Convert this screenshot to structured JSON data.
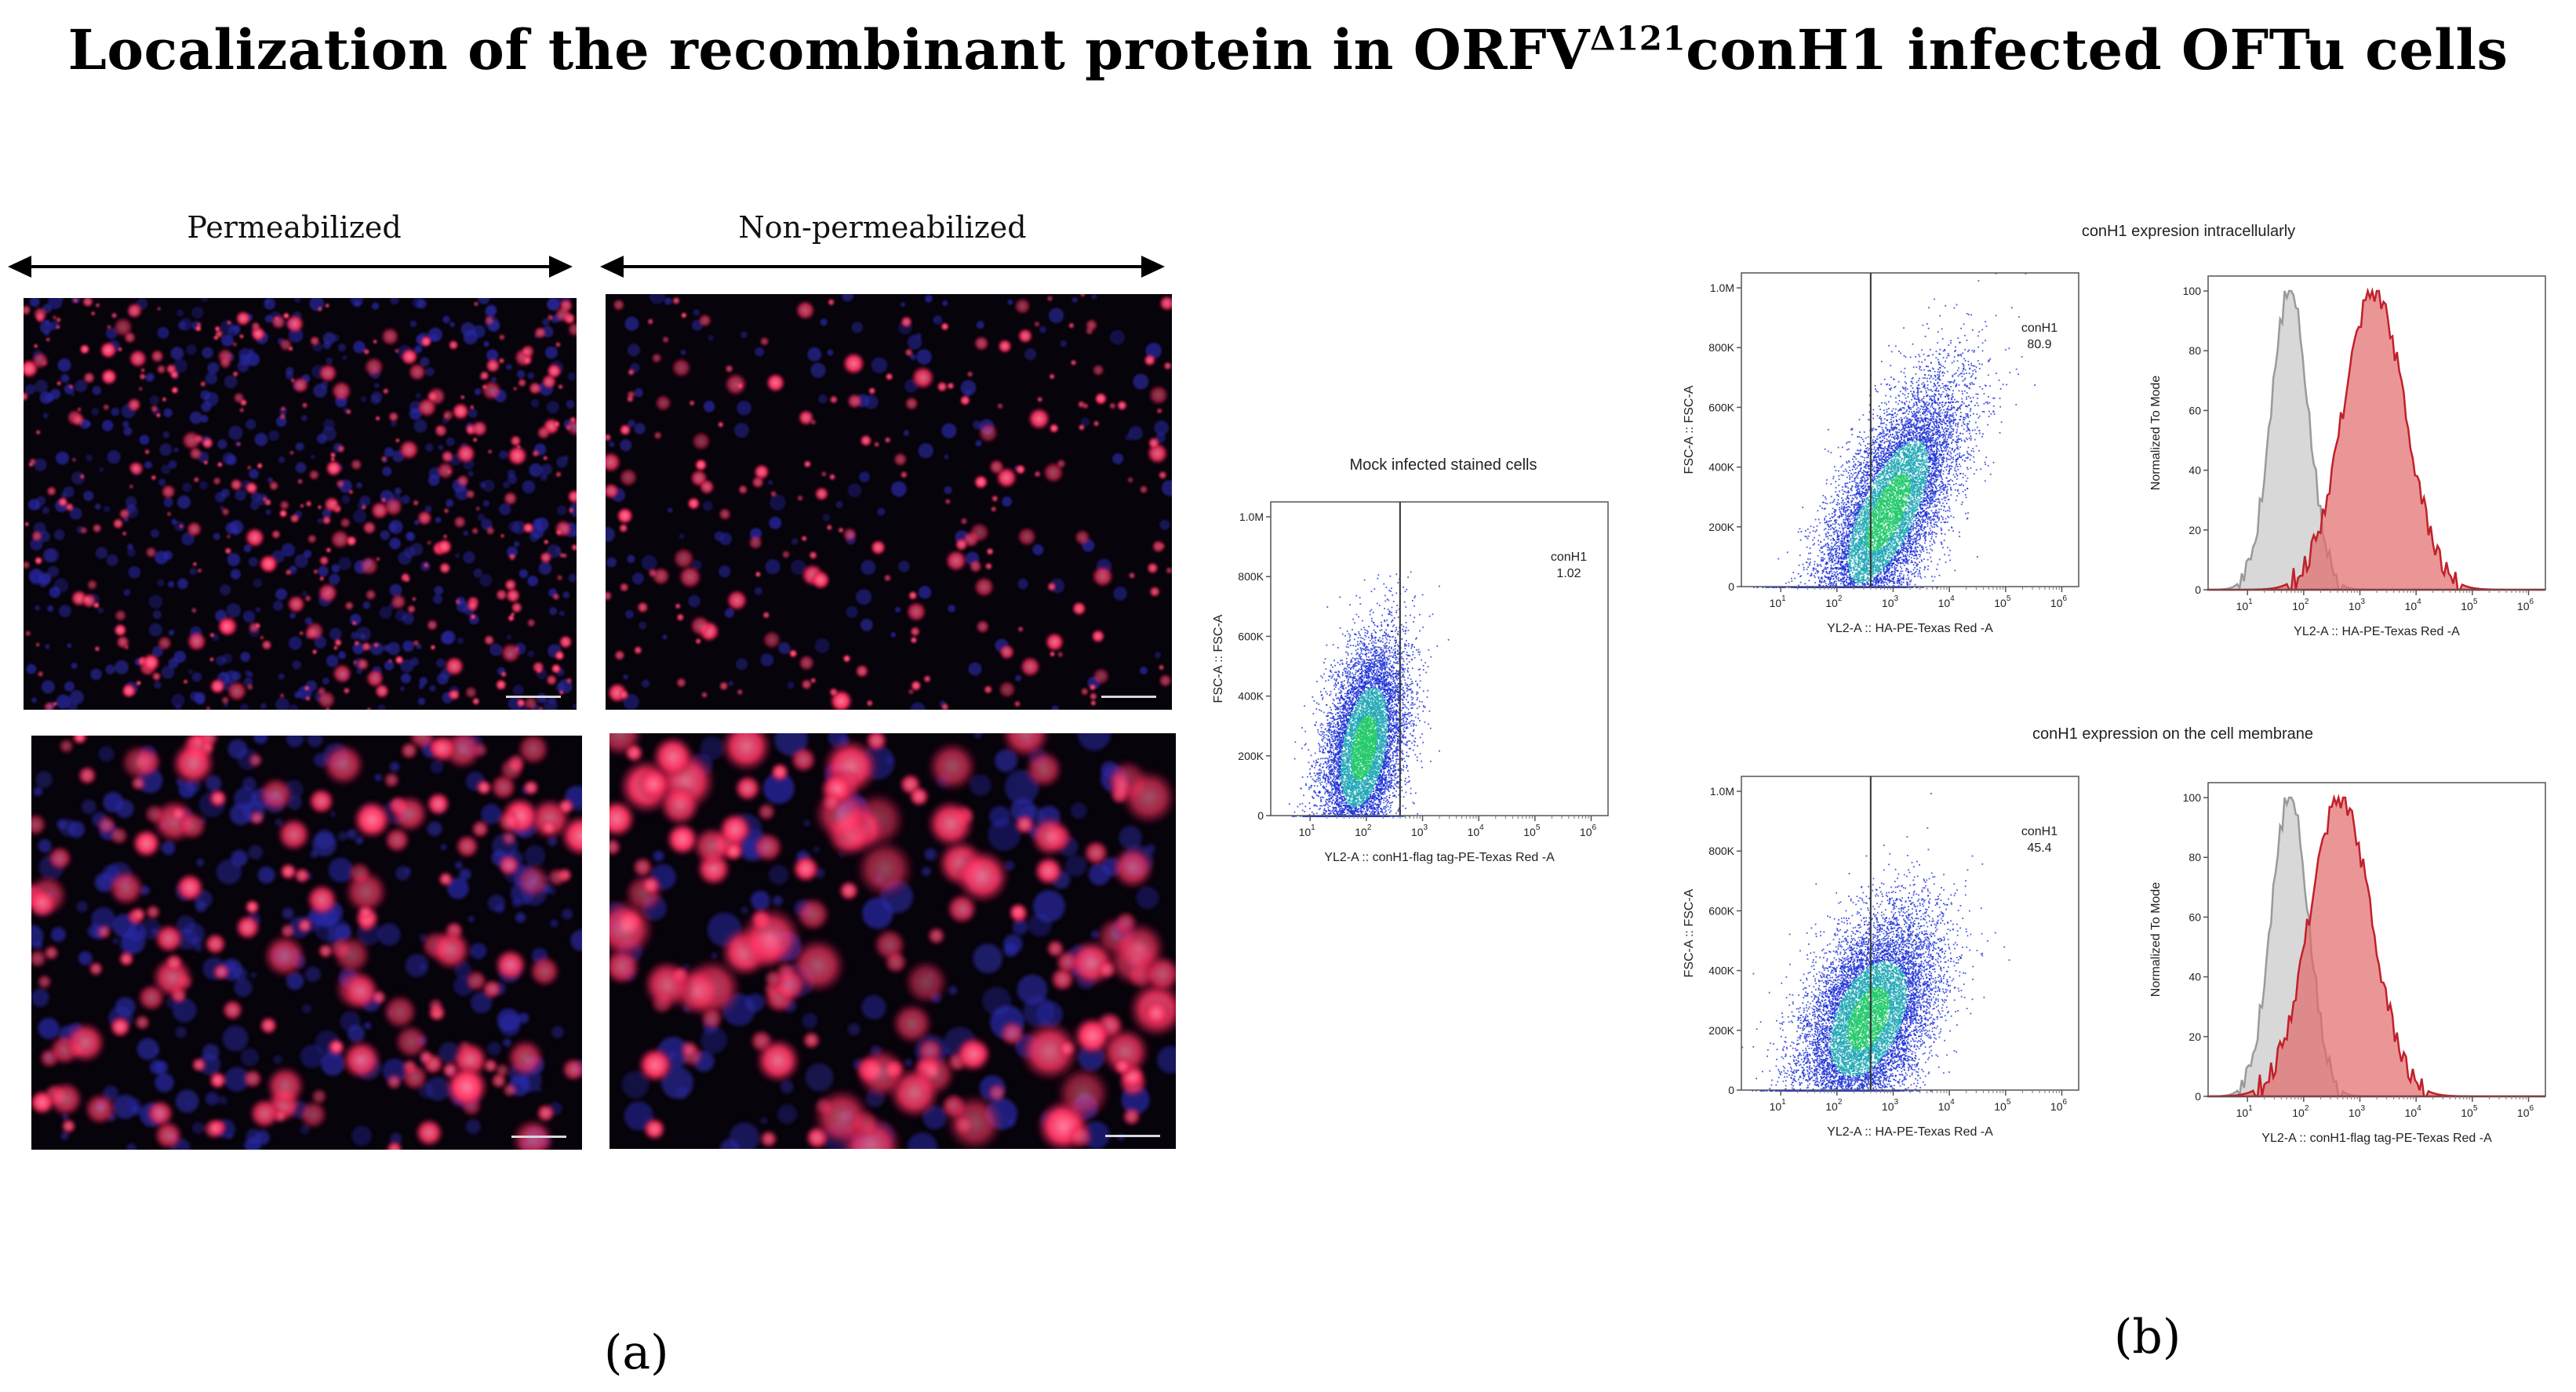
{
  "figure": {
    "title": {
      "main": "Localization of the recombinant protein in ORFV",
      "superscript": "Δ121",
      "tail": "conH1 infected OFTu cells"
    },
    "panel_a": {
      "letter": "(a)",
      "columns": [
        {
          "label": "Permeabilized"
        },
        {
          "label": "Non-permeabilized"
        }
      ]
    },
    "panel_b": {
      "letter": "(b)",
      "mock": {
        "title": "Mock infected stained cells",
        "gate": {
          "name": "conH1",
          "value": "1.02"
        },
        "ylabel": "FSC-A :: FSC-A",
        "xlabel": "YL2-A :: conH1-flag tag-PE-Texas Red   -A"
      },
      "intracellular": {
        "title": "conH1 expresion intracellularly",
        "gate": {
          "name": "conH1",
          "value": "80.9"
        },
        "scatter_ylabel": "FSC-A :: FSC-A",
        "scatter_xlabel": "YL2-A :: HA-PE-Texas Red   -A",
        "hist_ylabel": "Normalized To Mode",
        "hist_xlabel": "YL2-A :: HA-PE-Texas Red   -A"
      },
      "membrane": {
        "title": "conH1 expression on the cell membrane",
        "gate": {
          "name": "conH1",
          "value": "45.4"
        },
        "scatter_ylabel": "FSC-A :: FSC-A",
        "scatter_xlabel": "YL2-A :: HA-PE-Texas Red   -A",
        "hist_ylabel": "Normalized To Mode",
        "hist_xlabel": "YL2-A :: conH1-flag tag-PE-Texas Red   -A"
      },
      "scatter_yticks": [
        "0",
        "200K",
        "400K",
        "600K",
        "800K",
        "1.0M"
      ],
      "log_xticks": [
        {
          "base": "10",
          "exp": "1"
        },
        {
          "base": "10",
          "exp": "2"
        },
        {
          "base": "10",
          "exp": "3"
        },
        {
          "base": "10",
          "exp": "4"
        },
        {
          "base": "10",
          "exp": "5"
        },
        {
          "base": "10",
          "exp": "6"
        }
      ],
      "hist_yticks": [
        "0",
        "20",
        "40",
        "60",
        "80",
        "100"
      ]
    }
  },
  "colors": {
    "nucleus": "#2a2aa8",
    "protein": "#ff3060",
    "scatter_low": "#1a2fd6",
    "scatter_high": "#22c96a",
    "hist_control": "#c8c8c8",
    "hist_sample": "#e36a6a"
  }
}
